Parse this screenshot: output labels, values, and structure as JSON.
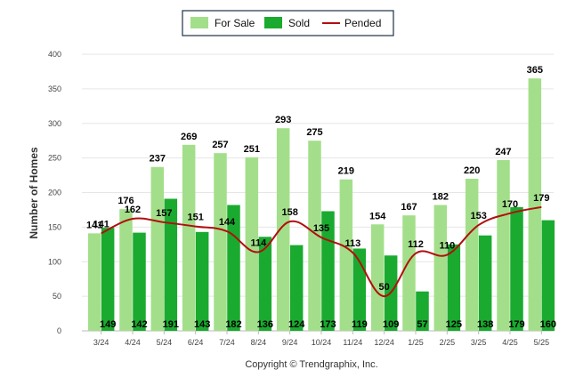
{
  "chart_data": {
    "type": "bar",
    "categories": [
      "3/24",
      "4/24",
      "5/24",
      "6/24",
      "7/24",
      "8/24",
      "9/24",
      "10/24",
      "11/24",
      "12/24",
      "1/25",
      "2/25",
      "3/25",
      "4/25",
      "5/25"
    ],
    "series": [
      {
        "name": "For Sale",
        "type": "bar",
        "color": "#a3df8a",
        "values": [
          141,
          176,
          237,
          269,
          257,
          251,
          293,
          275,
          219,
          154,
          167,
          182,
          220,
          247,
          365
        ]
      },
      {
        "name": "Sold",
        "type": "bar",
        "color": "#1aaa2f",
        "values": [
          149,
          142,
          191,
          143,
          182,
          136,
          124,
          173,
          119,
          109,
          57,
          125,
          138,
          179,
          160
        ]
      },
      {
        "name": "Pended",
        "type": "line",
        "color": "#b30e0e",
        "values": [
          141,
          162,
          157,
          151,
          144,
          114,
          158,
          135,
          113,
          50,
          112,
          110,
          153,
          170,
          179
        ]
      }
    ],
    "value_labels": {
      "for_sale": [
        "141",
        "176",
        "237",
        "269",
        "257",
        "251",
        "293",
        "275",
        "219",
        "154",
        "167",
        "182",
        "220",
        "247",
        "365"
      ],
      "sold": [
        "149",
        "142",
        "191",
        "143",
        "182",
        "136",
        "124",
        "173",
        "119",
        "109",
        "57",
        "125",
        "138",
        "179",
        "160"
      ],
      "pended": [
        "141",
        "162",
        "157",
        "151",
        "144",
        "114",
        "158",
        "135",
        "113",
        "50",
        "112",
        "110",
        "153",
        "170",
        "179"
      ]
    },
    "ylabel": "Number of Homes",
    "xlabel": "",
    "ylim": [
      0,
      400
    ],
    "yticks": [
      "0",
      "50",
      "100",
      "150",
      "200",
      "250",
      "300",
      "350",
      "400"
    ],
    "grid": true,
    "legend_position": "top-center"
  },
  "legend": {
    "for_sale": "For Sale",
    "sold": "Sold",
    "pended": "Pended"
  },
  "copyright": "Copyright © Trendgraphix, Inc."
}
